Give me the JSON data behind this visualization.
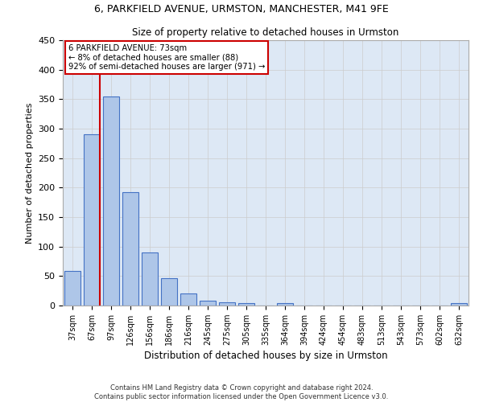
{
  "title": "6, PARKFIELD AVENUE, URMSTON, MANCHESTER, M41 9FE",
  "subtitle": "Size of property relative to detached houses in Urmston",
  "xlabel": "Distribution of detached houses by size in Urmston",
  "ylabel": "Number of detached properties",
  "categories": [
    "37sqm",
    "67sqm",
    "97sqm",
    "126sqm",
    "156sqm",
    "186sqm",
    "216sqm",
    "245sqm",
    "275sqm",
    "305sqm",
    "335sqm",
    "364sqm",
    "394sqm",
    "424sqm",
    "454sqm",
    "483sqm",
    "513sqm",
    "543sqm",
    "573sqm",
    "602sqm",
    "632sqm"
  ],
  "values": [
    58,
    290,
    355,
    192,
    90,
    46,
    20,
    8,
    5,
    4,
    0,
    4,
    0,
    0,
    0,
    0,
    0,
    0,
    0,
    0,
    4
  ],
  "bar_color": "#aec6e8",
  "bar_edge_color": "#4472c4",
  "annotation_text": "6 PARKFIELD AVENUE: 73sqm\n← 8% of detached houses are smaller (88)\n92% of semi-detached houses are larger (971) →",
  "annotation_box_color": "#ffffff",
  "annotation_box_edge_color": "#cc0000",
  "vline_color": "#cc0000",
  "grid_color": "#cccccc",
  "ylim": [
    0,
    450
  ],
  "footnote": "Contains HM Land Registry data © Crown copyright and database right 2024.\nContains public sector information licensed under the Open Government Licence v3.0.",
  "bg_color": "#ffffff",
  "plot_bg_color": "#dde8f5"
}
